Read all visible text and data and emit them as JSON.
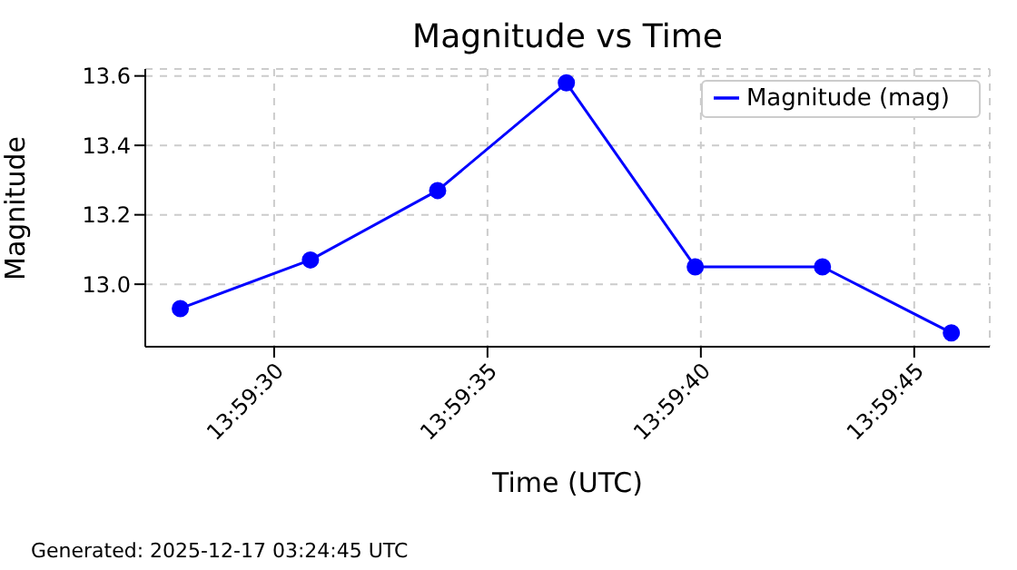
{
  "chart_data": {
    "type": "line",
    "title": "Magnitude vs Time",
    "xlabel": "Time (UTC)",
    "ylabel": "Magnitude",
    "x": [
      13.991056,
      13.991903,
      13.992731,
      13.993569,
      13.994408,
      13.995236,
      13.996075
    ],
    "series": [
      {
        "name": "Magnitude (mag)",
        "color": "#0000ff",
        "values": [
          12.93,
          13.07,
          13.27,
          13.58,
          13.05,
          13.05,
          12.86
        ]
      }
    ],
    "xlim": [
      13.990828,
      13.996325
    ],
    "xticks": [
      {
        "value": 13.9916667,
        "label": "13:59:30"
      },
      {
        "value": 13.9930556,
        "label": "13:59:35"
      },
      {
        "value": 13.9944444,
        "label": "13:59:40"
      },
      {
        "value": 13.9958333,
        "label": "13:59:45"
      }
    ],
    "ylim": [
      12.82,
      13.62
    ],
    "yticks": [
      {
        "value": 13.0,
        "label": "13.0"
      },
      {
        "value": 13.2,
        "label": "13.2"
      },
      {
        "value": 13.4,
        "label": "13.4"
      },
      {
        "value": 13.6,
        "label": "13.6"
      }
    ],
    "grid": true,
    "legend": "top right",
    "marker": "circle",
    "line_style": "solid",
    "annotations": [
      "Generated: 2025-12-17 03:24:45 UTC"
    ]
  }
}
